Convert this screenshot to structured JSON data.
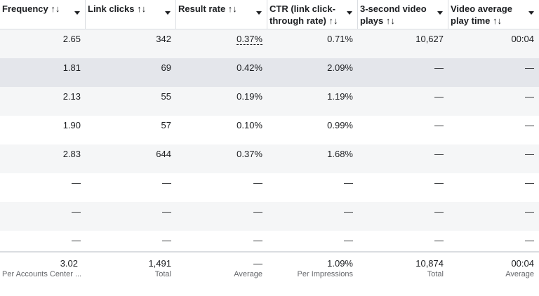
{
  "columns": [
    {
      "label": "Frequency ↑↓"
    },
    {
      "label": "Link clicks ↑↓"
    },
    {
      "label": "Result rate ↑↓"
    },
    {
      "label": "CTR (link click-through rate) ↑↓"
    },
    {
      "label": "3-second video plays ↑↓"
    },
    {
      "label": "Video average play time ↑↓"
    }
  ],
  "rows": [
    [
      "2.65",
      "342",
      "0.37%",
      "0.71%",
      "10,627",
      "00:04"
    ],
    [
      "1.81",
      "69",
      "0.42%",
      "2.09%",
      "—",
      "—"
    ],
    [
      "2.13",
      "55",
      "0.19%",
      "1.19%",
      "—",
      "—"
    ],
    [
      "1.90",
      "57",
      "0.10%",
      "0.99%",
      "—",
      "—"
    ],
    [
      "2.83",
      "644",
      "0.37%",
      "1.68%",
      "—",
      "—"
    ],
    [
      "—",
      "—",
      "—",
      "—",
      "—",
      "—"
    ],
    [
      "—",
      "—",
      "—",
      "—",
      "—",
      "—"
    ],
    [
      "—",
      "—",
      "—",
      "—",
      "—",
      "—"
    ]
  ],
  "totals": [
    {
      "value": "3.02",
      "sub": "Per Accounts Center ..."
    },
    {
      "value": "1,491",
      "sub": "Total"
    },
    {
      "value": "—",
      "sub": "Average"
    },
    {
      "value": "1.09%",
      "sub": "Per Impressions"
    },
    {
      "value": "10,874",
      "sub": "Total"
    },
    {
      "value": "00:04",
      "sub": "Average"
    }
  ]
}
